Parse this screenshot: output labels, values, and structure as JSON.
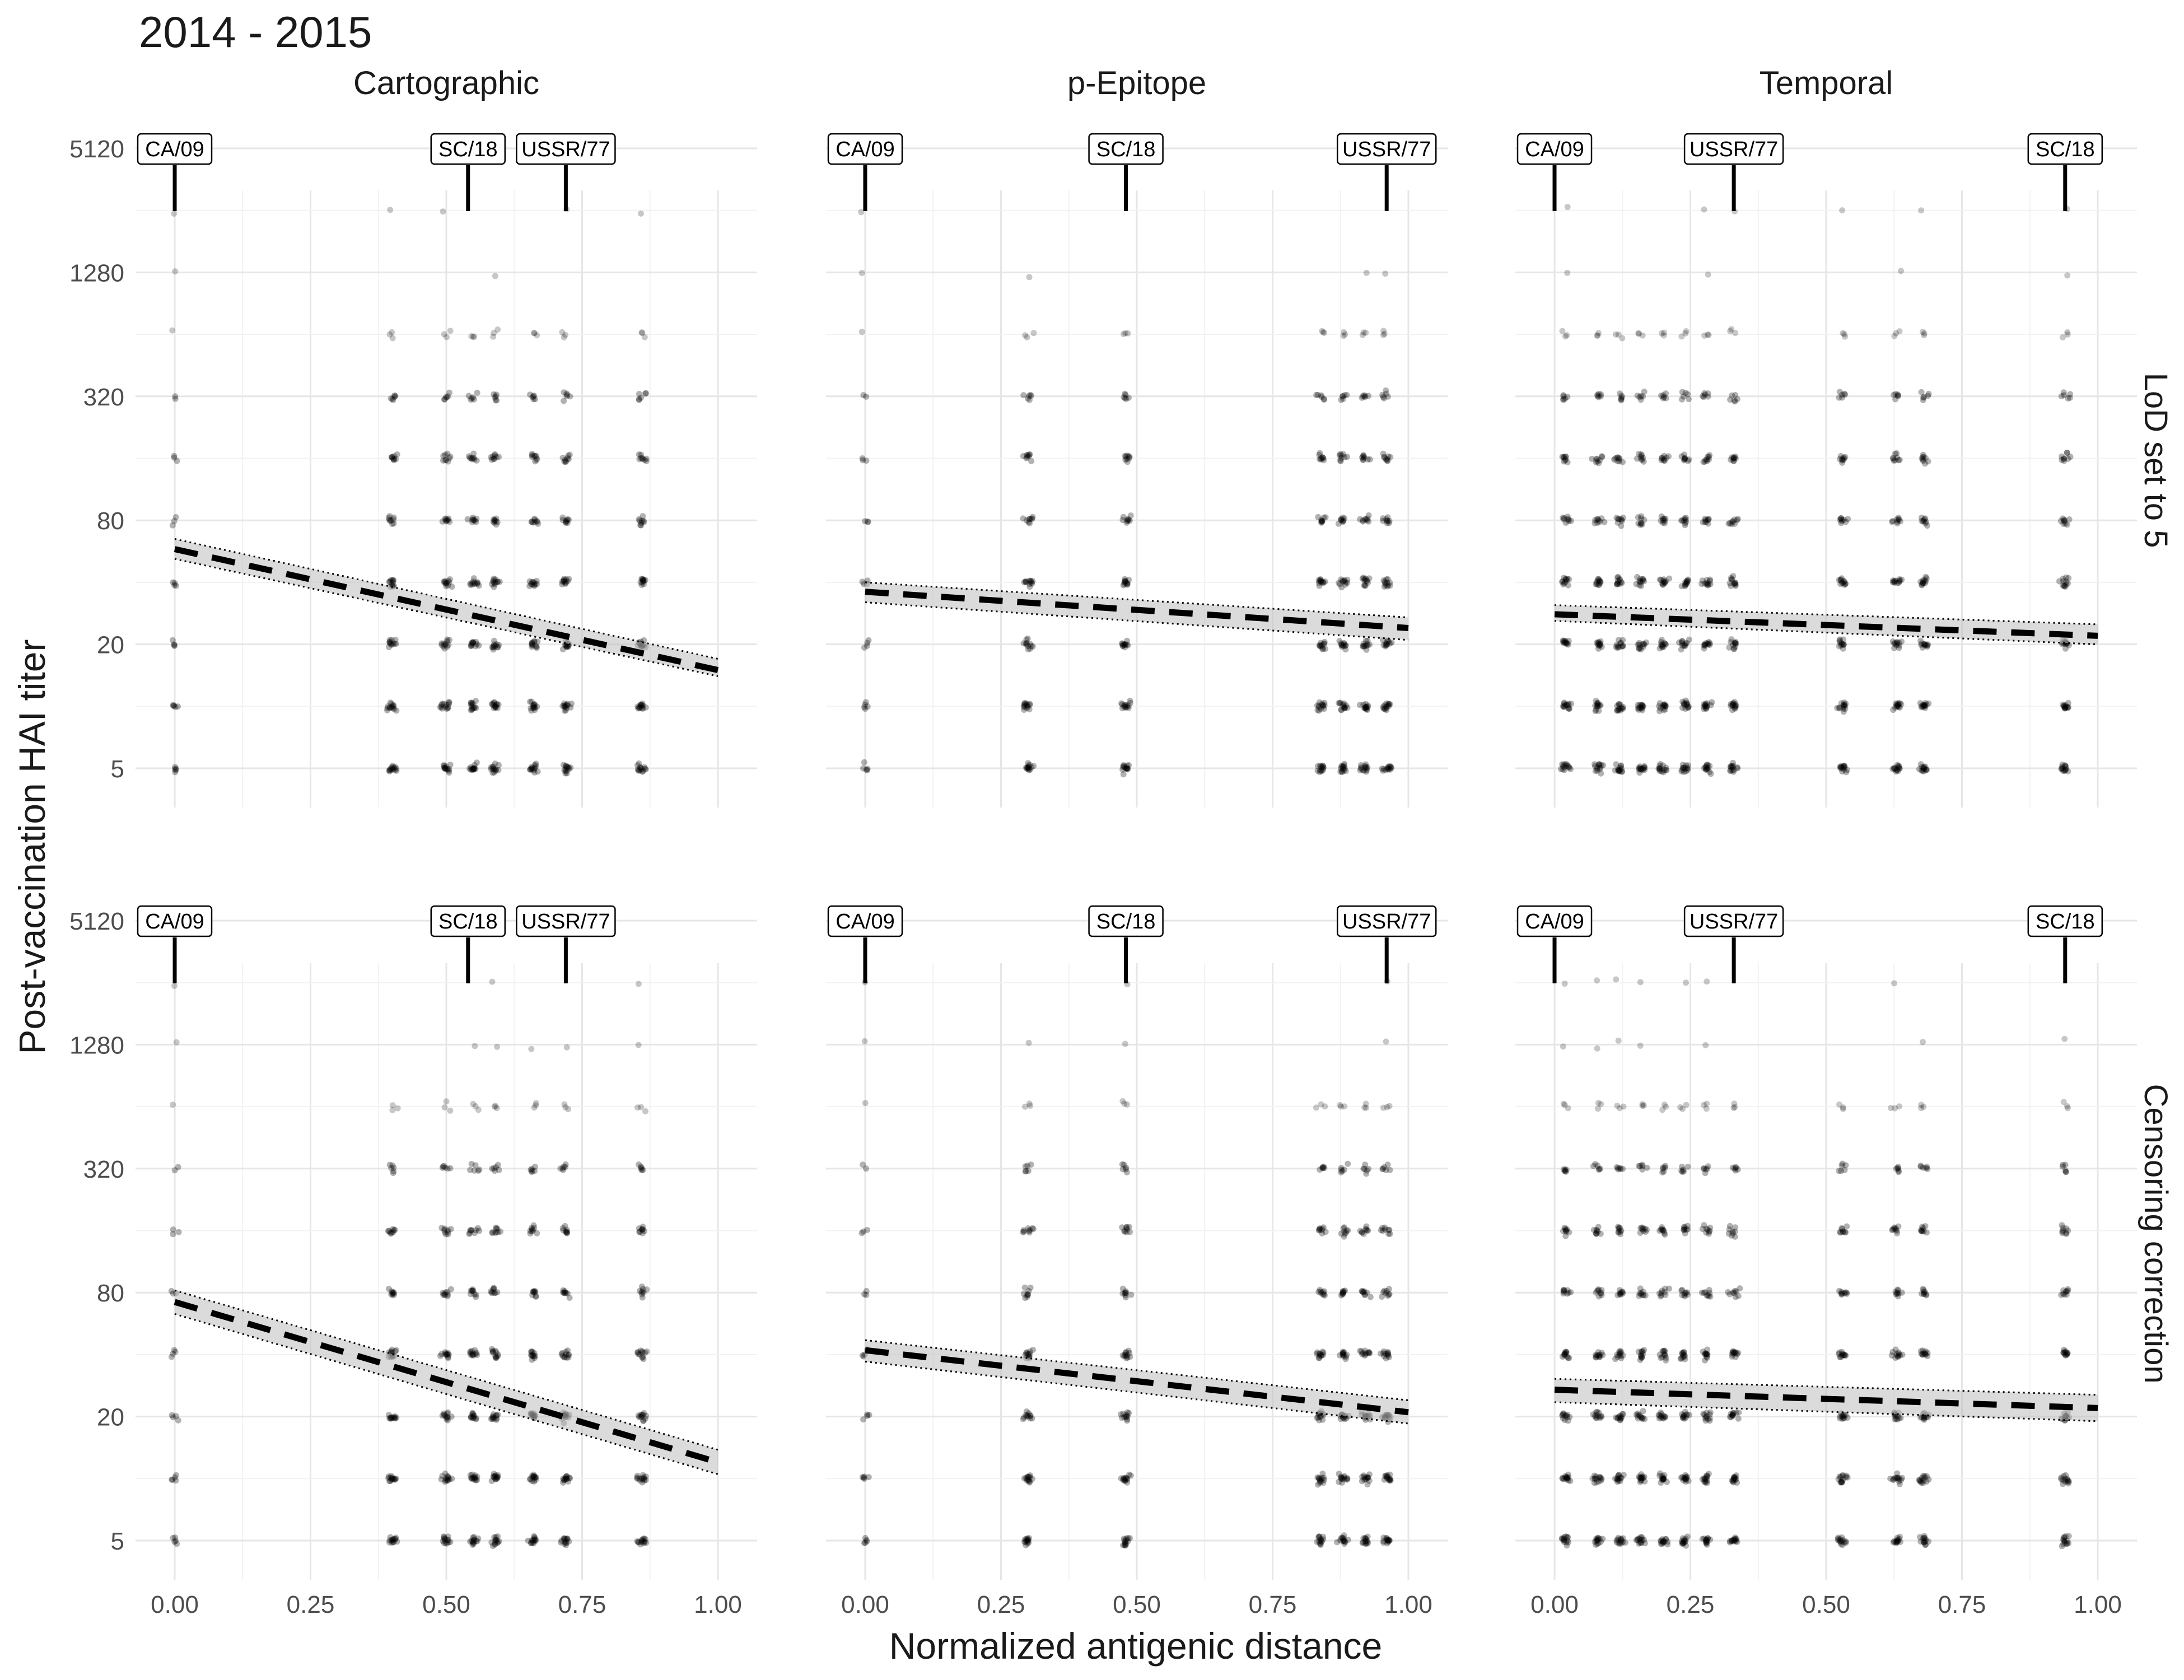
{
  "figure_title": "2014 - 2015",
  "chart_data": {
    "type": "scatter",
    "title": "2014 - 2015",
    "xlabel": "Normalized antigenic distance",
    "ylabel": "Post-vaccination HAI titer",
    "y_scale": "log2",
    "xlim": [
      0,
      1
    ],
    "ylim": [
      5,
      5120
    ],
    "x_ticks": [
      0,
      0.25,
      0.5,
      0.75,
      1
    ],
    "x_tick_labels": [
      "0.00",
      "0.25",
      "0.50",
      "0.75",
      "1.00"
    ],
    "y_ticks": [
      5,
      20,
      80,
      320,
      1280,
      5120
    ],
    "y_tick_labels": [
      "5",
      "20",
      "80",
      "320",
      "1280",
      "5120"
    ],
    "titer_levels": [
      5,
      10,
      20,
      40,
      80,
      160,
      320,
      640,
      1280,
      2560
    ],
    "grid": true,
    "columns": [
      "Cartographic",
      "p-Epitope",
      "Temporal"
    ],
    "rows": [
      "LoD set to 5",
      "Censoring correction"
    ],
    "facets": [
      {
        "row": "LoD set to 5",
        "column": "Cartographic",
        "strains": [
          {
            "label": "CA/09",
            "x": 0.0
          },
          {
            "label": "SC/18",
            "x": 0.54
          },
          {
            "label": "USSR/77",
            "x": 0.72
          }
        ],
        "point_columns": [
          0.0,
          0.4,
          0.5,
          0.55,
          0.59,
          0.66,
          0.72,
          0.86
        ],
        "fit": {
          "x": [
            0,
            1
          ],
          "y": [
            58,
            15
          ],
          "ci_low": [
            52,
            14
          ],
          "ci_high": [
            65,
            17
          ]
        }
      },
      {
        "row": "LoD set to 5",
        "column": "p-Epitope",
        "strains": [
          {
            "label": "CA/09",
            "x": 0.0
          },
          {
            "label": "SC/18",
            "x": 0.48
          },
          {
            "label": "USSR/77",
            "x": 0.96
          }
        ],
        "point_columns": [
          0.0,
          0.3,
          0.48,
          0.84,
          0.88,
          0.92,
          0.96
        ],
        "fit": {
          "x": [
            0,
            1
          ],
          "y": [
            36,
            24
          ],
          "ci_low": [
            32,
            21
          ],
          "ci_high": [
            40,
            27
          ]
        }
      },
      {
        "row": "LoD set to 5",
        "column": "Temporal",
        "strains": [
          {
            "label": "CA/09",
            "x": 0.0
          },
          {
            "label": "USSR/77",
            "x": 0.33
          },
          {
            "label": "SC/18",
            "x": 0.94
          }
        ],
        "point_columns": [
          0.02,
          0.08,
          0.12,
          0.16,
          0.2,
          0.24,
          0.28,
          0.33,
          0.53,
          0.63,
          0.68,
          0.94
        ],
        "fit": {
          "x": [
            0,
            1
          ],
          "y": [
            28,
            22
          ],
          "ci_low": [
            26,
            20
          ],
          "ci_high": [
            31,
            25
          ]
        }
      },
      {
        "row": "Censoring correction",
        "column": "Cartographic",
        "strains": [
          {
            "label": "CA/09",
            "x": 0.0
          },
          {
            "label": "SC/18",
            "x": 0.54
          },
          {
            "label": "USSR/77",
            "x": 0.72
          }
        ],
        "point_columns": [
          0.0,
          0.4,
          0.5,
          0.55,
          0.59,
          0.66,
          0.72,
          0.86
        ],
        "fit": {
          "x": [
            0,
            1
          ],
          "y": [
            72,
            12
          ],
          "ci_low": [
            63,
            10.5
          ],
          "ci_high": [
            82,
            13.8
          ]
        }
      },
      {
        "row": "Censoring correction",
        "column": "p-Epitope",
        "strains": [
          {
            "label": "CA/09",
            "x": 0.0
          },
          {
            "label": "SC/18",
            "x": 0.48
          },
          {
            "label": "USSR/77",
            "x": 0.96
          }
        ],
        "point_columns": [
          0.0,
          0.3,
          0.48,
          0.84,
          0.88,
          0.92,
          0.96
        ],
        "fit": {
          "x": [
            0,
            1
          ],
          "y": [
            42,
            21
          ],
          "ci_low": [
            37,
            18.5
          ],
          "ci_high": [
            47,
            24
          ]
        }
      },
      {
        "row": "Censoring correction",
        "column": "Temporal",
        "strains": [
          {
            "label": "CA/09",
            "x": 0.0
          },
          {
            "label": "USSR/77",
            "x": 0.33
          },
          {
            "label": "SC/18",
            "x": 0.94
          }
        ],
        "point_columns": [
          0.02,
          0.08,
          0.12,
          0.16,
          0.2,
          0.24,
          0.28,
          0.33,
          0.53,
          0.63,
          0.68,
          0.94
        ],
        "fit": {
          "x": [
            0,
            1
          ],
          "y": [
            27,
            22
          ],
          "ci_low": [
            23.5,
            19
          ],
          "ci_high": [
            30.5,
            25.5
          ]
        }
      }
    ]
  }
}
